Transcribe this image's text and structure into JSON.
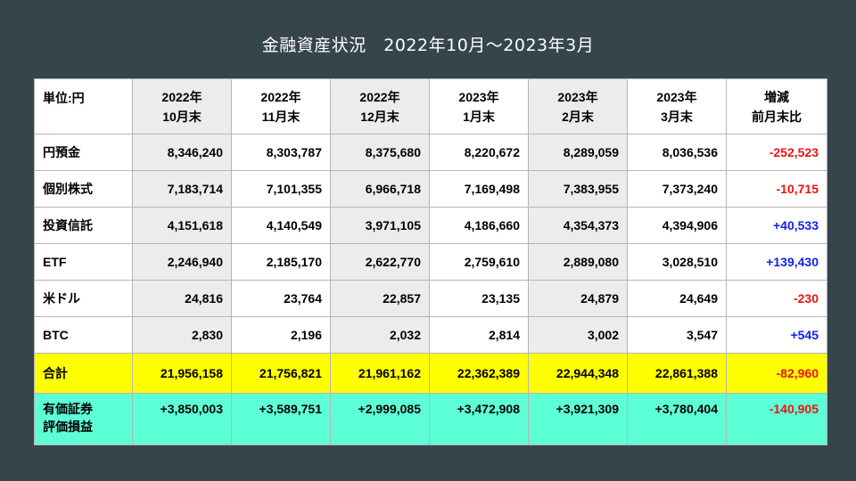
{
  "title": "金融資産状況　2022年10月～2023年3月",
  "header": {
    "unit": "単位:円",
    "columns": [
      [
        "2022年",
        "10月末"
      ],
      [
        "2022年",
        "11月末"
      ],
      [
        "2022年",
        "12月末"
      ],
      [
        "2023年",
        "1月末"
      ],
      [
        "2023年",
        "2月末"
      ],
      [
        "2023年",
        "3月末"
      ]
    ],
    "diff": [
      "増減",
      "前月末比"
    ]
  },
  "rows": [
    {
      "label": "円預金",
      "values": [
        "8,346,240",
        "8,303,787",
        "8,375,680",
        "8,220,672",
        "8,289,059",
        "8,036,536"
      ],
      "diff": "-252,523"
    },
    {
      "label": "個別株式",
      "values": [
        "7,183,714",
        "7,101,355",
        "6,966,718",
        "7,169,498",
        "7,383,955",
        "7,373,240"
      ],
      "diff": "-10,715"
    },
    {
      "label": "投資信託",
      "values": [
        "4,151,618",
        "4,140,549",
        "3,971,105",
        "4,186,660",
        "4,354,373",
        "4,394,906"
      ],
      "diff": "+40,533"
    },
    {
      "label": "ETF",
      "values": [
        "2,246,940",
        "2,185,170",
        "2,622,770",
        "2,759,610",
        "2,889,080",
        "3,028,510"
      ],
      "diff": "+139,430"
    },
    {
      "label": "米ドル",
      "values": [
        "24,816",
        "23,764",
        "22,857",
        "23,135",
        "24,879",
        "24,649"
      ],
      "diff": "-230"
    },
    {
      "label": "BTC",
      "values": [
        "2,830",
        "2,196",
        "2,032",
        "2,814",
        "3,002",
        "3,547"
      ],
      "diff": "+545"
    }
  ],
  "total": {
    "label": "合計",
    "values": [
      "21,956,158",
      "21,756,821",
      "21,961,162",
      "22,362,389",
      "22,944,348",
      "22,861,388"
    ],
    "diff": "-82,960"
  },
  "pl": {
    "label": [
      "有価証券",
      "評価損益"
    ],
    "values": [
      "+3,850,003",
      "+3,589,751",
      "+2,999,085",
      "+3,472,908",
      "+3,921,309",
      "+3,780,404"
    ],
    "diff": "-140,905"
  },
  "colors": {
    "background": "#36444c",
    "total_row": "#ffff00",
    "pl_row": "#5dffd6",
    "negative": "#ee1111",
    "positive": "#1122ee",
    "shaded_column": "#ececec"
  }
}
